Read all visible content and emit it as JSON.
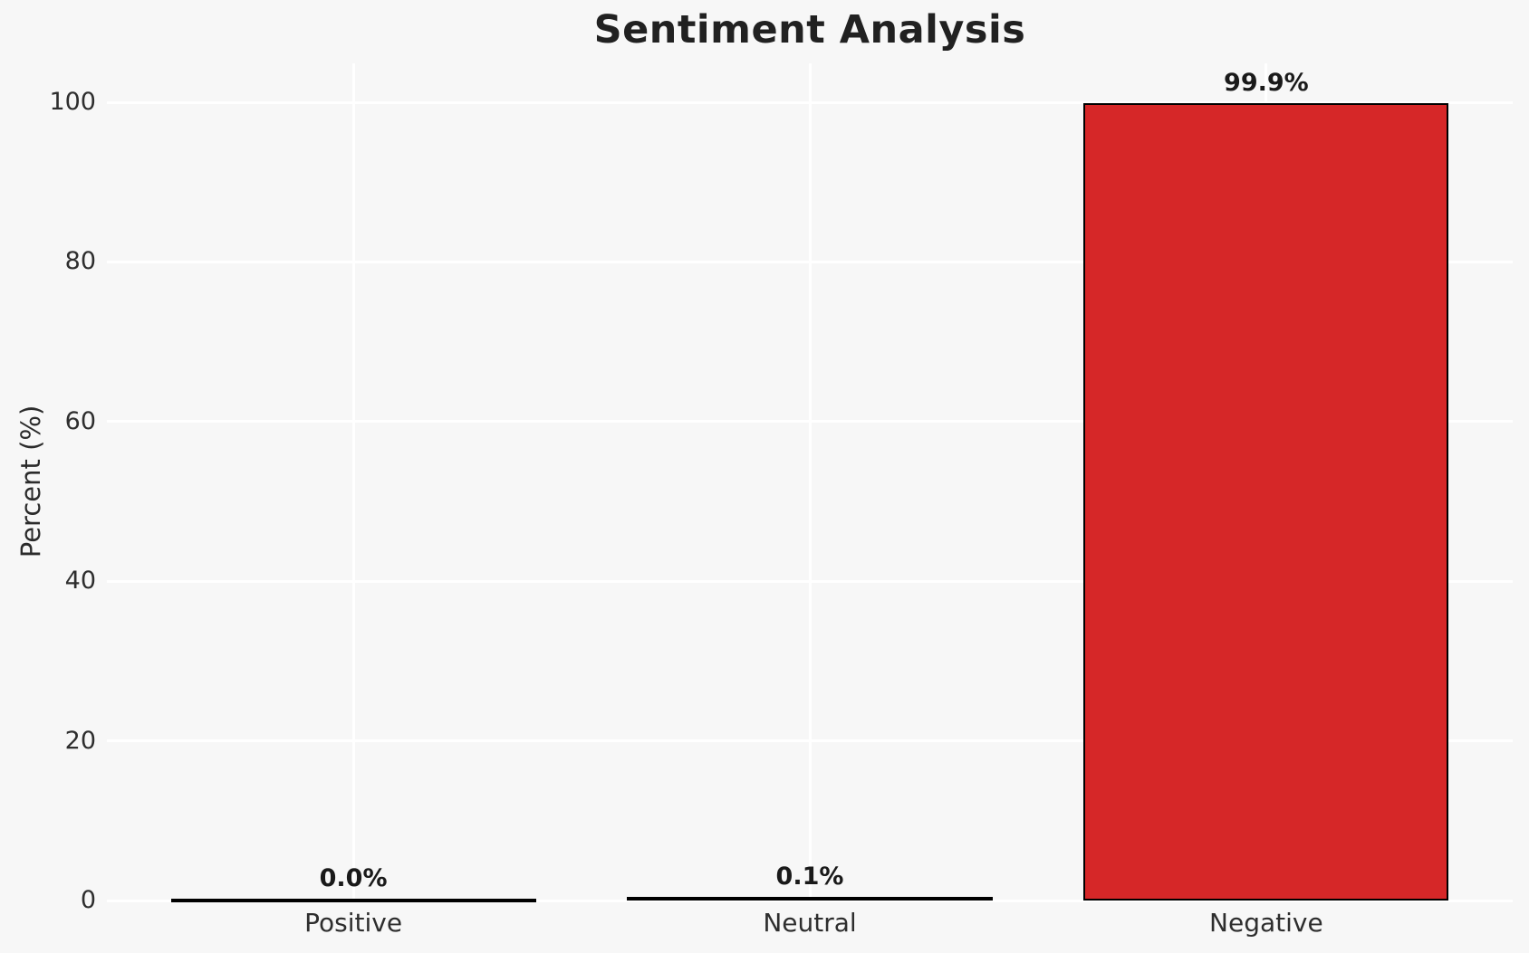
{
  "chart_data": {
    "type": "bar",
    "title": "Sentiment Analysis",
    "xlabel": "",
    "ylabel": "Percent (%)",
    "categories": [
      "Positive",
      "Neutral",
      "Negative"
    ],
    "values": [
      0.0,
      0.1,
      99.9
    ],
    "value_labels": [
      "0.0%",
      "0.1%",
      "99.9%"
    ],
    "yticks": [
      0,
      20,
      40,
      60,
      80,
      100
    ],
    "ylim": [
      0,
      105
    ],
    "grid": true,
    "legend": false,
    "colors": {
      "bar_fill": "#d62728",
      "bar_edge": "#000000",
      "background": "#f7f7f7",
      "gridline": "#ffffff",
      "title_text": "#212121",
      "tick_text": "#2e2e2e"
    }
  }
}
